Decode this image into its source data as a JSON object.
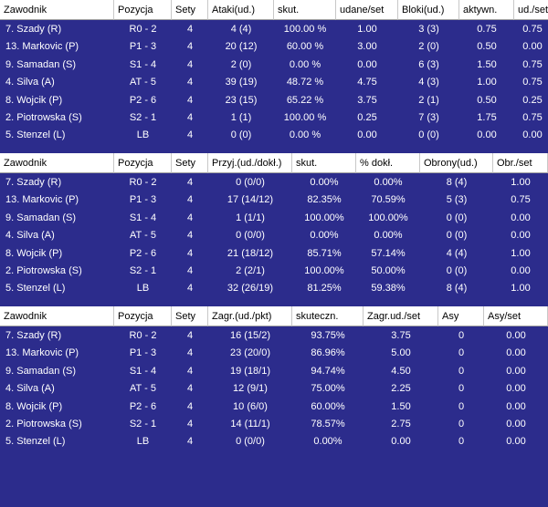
{
  "tables": [
    {
      "columns": [
        "Zawodnik",
        "Pozycja",
        "Sety",
        "Ataki(ud.)",
        "skut.",
        "udane/set",
        "Bloki(ud.)",
        "aktywn.",
        "ud./set"
      ],
      "rows": [
        [
          "7. Szady (R)",
          "R0 - 2",
          "4",
          "4 (4)",
          "100.00 %",
          "1.00",
          "3 (3)",
          "0.75",
          "0.75"
        ],
        [
          "13. Markovic (P)",
          "P1 - 3",
          "4",
          "20 (12)",
          "60.00 %",
          "3.00",
          "2 (0)",
          "0.50",
          "0.00"
        ],
        [
          "9. Samadan (S)",
          "S1 - 4",
          "4",
          "2 (0)",
          "0.00 %",
          "0.00",
          "6 (3)",
          "1.50",
          "0.75"
        ],
        [
          "4. Silva (A)",
          "AT - 5",
          "4",
          "39 (19)",
          "48.72 %",
          "4.75",
          "4 (3)",
          "1.00",
          "0.75"
        ],
        [
          "8. Wojcik (P)",
          "P2 - 6",
          "4",
          "23 (15)",
          "65.22 %",
          "3.75",
          "2 (1)",
          "0.50",
          "0.25"
        ],
        [
          "2. Piotrowska (S)",
          "S2 - 1",
          "4",
          "1 (1)",
          "100.00 %",
          "0.25",
          "7 (3)",
          "1.75",
          "0.75"
        ],
        [
          "5. Stenzel (L)",
          "LB",
          "4",
          "0 (0)",
          "0.00 %",
          "0.00",
          "0 (0)",
          "0.00",
          "0.00"
        ]
      ]
    },
    {
      "columns": [
        "Zawodnik",
        "Pozycja",
        "Sety",
        "Przyj.(ud./dokł.)",
        "skut.",
        "% dokł.",
        "Obrony(ud.)",
        "Obr./set"
      ],
      "rows": [
        [
          "7. Szady (R)",
          "R0 - 2",
          "4",
          "0 (0/0)",
          "0.00%",
          "0.00%",
          "8 (4)",
          "1.00"
        ],
        [
          "13. Markovic (P)",
          "P1 - 3",
          "4",
          "17 (14/12)",
          "82.35%",
          "70.59%",
          "5 (3)",
          "0.75"
        ],
        [
          "9. Samadan (S)",
          "S1 - 4",
          "4",
          "1 (1/1)",
          "100.00%",
          "100.00%",
          "0 (0)",
          "0.00"
        ],
        [
          "4. Silva (A)",
          "AT - 5",
          "4",
          "0 (0/0)",
          "0.00%",
          "0.00%",
          "0 (0)",
          "0.00"
        ],
        [
          "8. Wojcik (P)",
          "P2 - 6",
          "4",
          "21 (18/12)",
          "85.71%",
          "57.14%",
          "4 (4)",
          "1.00"
        ],
        [
          "2. Piotrowska (S)",
          "S2 - 1",
          "4",
          "2 (2/1)",
          "100.00%",
          "50.00%",
          "0 (0)",
          "0.00"
        ],
        [
          "5. Stenzel (L)",
          "LB",
          "4",
          "32 (26/19)",
          "81.25%",
          "59.38%",
          "8 (4)",
          "1.00"
        ]
      ]
    },
    {
      "columns": [
        "Zawodnik",
        "Pozycja",
        "Sety",
        "Zagr.(ud./pkt)",
        "skuteczn.",
        "Zagr.ud./set",
        "Asy",
        "Asy/set"
      ],
      "rows": [
        [
          "7. Szady (R)",
          "R0 - 2",
          "4",
          "16 (15/2)",
          "93.75%",
          "3.75",
          "0",
          "0.00"
        ],
        [
          "13. Markovic (P)",
          "P1 - 3",
          "4",
          "23 (20/0)",
          "86.96%",
          "5.00",
          "0",
          "0.00"
        ],
        [
          "9. Samadan (S)",
          "S1 - 4",
          "4",
          "19 (18/1)",
          "94.74%",
          "4.50",
          "0",
          "0.00"
        ],
        [
          "4. Silva (A)",
          "AT - 5",
          "4",
          "12 (9/1)",
          "75.00%",
          "2.25",
          "0",
          "0.00"
        ],
        [
          "8. Wojcik (P)",
          "P2 - 6",
          "4",
          "10 (6/0)",
          "60.00%",
          "1.50",
          "0",
          "0.00"
        ],
        [
          "2. Piotrowska (S)",
          "S2 - 1",
          "4",
          "14 (11/1)",
          "78.57%",
          "2.75",
          "0",
          "0.00"
        ],
        [
          "5. Stenzel (L)",
          "LB",
          "4",
          "0 (0/0)",
          "0.00%",
          "0.00",
          "0",
          "0.00"
        ]
      ]
    }
  ]
}
